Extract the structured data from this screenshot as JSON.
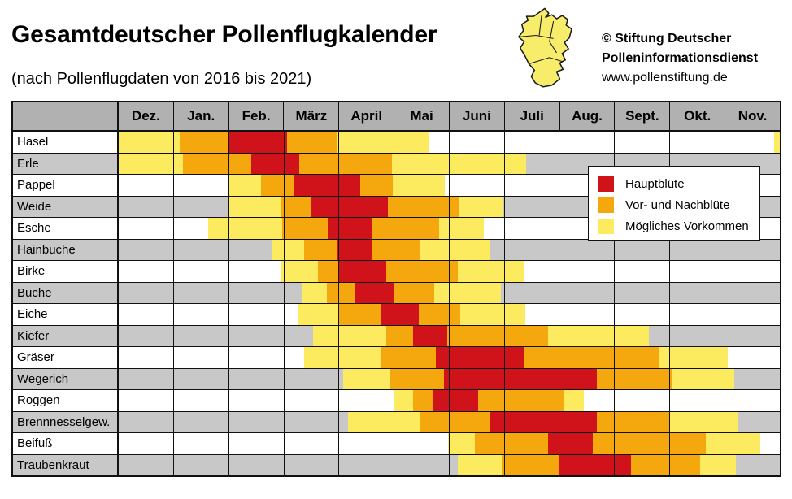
{
  "page": {
    "title": "Gesamtdeutscher Pollenflugkalender",
    "subtitle": "(nach Pollenflugdaten von 2016 bis 2021)"
  },
  "branding": {
    "map_icon": "germany-map",
    "line1": "© Stiftung Deutscher",
    "line2": "Polleninformationsdienst",
    "line3": "www.pollenstiftung.de"
  },
  "legend": {
    "items": [
      {
        "key": "main",
        "label": "Hauptblüte",
        "color": "#d0121a"
      },
      {
        "key": "pre",
        "label": "Vor- und Nachblüte",
        "color": "#f5a70e"
      },
      {
        "key": "possible",
        "label": "Mögliches Vorkommen",
        "color": "#fcea5f"
      }
    ]
  },
  "colors": {
    "header_gray": "#b1b1b1",
    "alt_row_gray": "#c8c8c8",
    "grid_black": "#111111",
    "map_yellow": "#f8ed6b"
  },
  "chart_data": {
    "type": "heatmap",
    "title": "Gesamtdeutscher Pollenflugkalender",
    "subtitle": "(nach Pollenflugdaten von 2016 bis 2021)",
    "x_axis": "months, starting with December; segment positions in fractional months 0–12 from Dec 1",
    "months": [
      "Dez.",
      "Jan.",
      "Feb.",
      "März",
      "April",
      "Mai",
      "Juni",
      "Juli",
      "Aug.",
      "Sept.",
      "Okt.",
      "Nov."
    ],
    "legend_position": "overlaid upper right of grid",
    "categories": {
      "main": "Hauptblüte",
      "pre": "Vor- und Nachblüte",
      "possible": "Mögliches Vorkommen"
    },
    "rows": [
      {
        "label": "Hasel",
        "segments": [
          {
            "kind": "possible",
            "from": 0,
            "to": 1.1
          },
          {
            "kind": "pre",
            "from": 1.1,
            "to": 2.0
          },
          {
            "kind": "main",
            "from": 2.0,
            "to": 3.06
          },
          {
            "kind": "pre",
            "from": 3.06,
            "to": 3.97
          },
          {
            "kind": "possible",
            "from": 3.97,
            "to": 5.64
          },
          {
            "kind": "possible",
            "from": 11.9,
            "to": 12.0
          }
        ]
      },
      {
        "label": "Erle",
        "segments": [
          {
            "kind": "possible",
            "from": 0,
            "to": 1.17
          },
          {
            "kind": "pre",
            "from": 1.17,
            "to": 2.4
          },
          {
            "kind": "main",
            "from": 2.4,
            "to": 3.27
          },
          {
            "kind": "pre",
            "from": 3.27,
            "to": 4.96
          },
          {
            "kind": "possible",
            "from": 4.96,
            "to": 7.4
          }
        ]
      },
      {
        "label": "Pappel",
        "segments": [
          {
            "kind": "possible",
            "from": 2.0,
            "to": 2.58
          },
          {
            "kind": "pre",
            "from": 2.58,
            "to": 3.17
          },
          {
            "kind": "main",
            "from": 3.17,
            "to": 4.39
          },
          {
            "kind": "pre",
            "from": 4.39,
            "to": 4.97
          },
          {
            "kind": "possible",
            "from": 4.97,
            "to": 5.92
          }
        ]
      },
      {
        "label": "Weide",
        "segments": [
          {
            "kind": "possible",
            "from": 2.0,
            "to": 2.95
          },
          {
            "kind": "pre",
            "from": 2.95,
            "to": 3.49
          },
          {
            "kind": "main",
            "from": 3.49,
            "to": 4.88
          },
          {
            "kind": "pre",
            "from": 4.88,
            "to": 6.18
          },
          {
            "kind": "possible",
            "from": 6.18,
            "to": 6.98
          }
        ]
      },
      {
        "label": "Esche",
        "segments": [
          {
            "kind": "possible",
            "from": 1.62,
            "to": 2.97
          },
          {
            "kind": "pre",
            "from": 2.97,
            "to": 3.8
          },
          {
            "kind": "main",
            "from": 3.8,
            "to": 4.59
          },
          {
            "kind": "pre",
            "from": 4.59,
            "to": 5.81
          },
          {
            "kind": "possible",
            "from": 5.81,
            "to": 6.62
          }
        ]
      },
      {
        "label": "Hainbuche",
        "segments": [
          {
            "kind": "possible",
            "from": 2.79,
            "to": 3.36
          },
          {
            "kind": "pre",
            "from": 3.36,
            "to": 3.95
          },
          {
            "kind": "main",
            "from": 3.95,
            "to": 4.61
          },
          {
            "kind": "pre",
            "from": 4.61,
            "to": 5.46
          },
          {
            "kind": "possible",
            "from": 5.46,
            "to": 6.74
          }
        ]
      },
      {
        "label": "Birke",
        "segments": [
          {
            "kind": "possible",
            "from": 2.95,
            "to": 3.61
          },
          {
            "kind": "pre",
            "from": 3.61,
            "to": 4.0
          },
          {
            "kind": "main",
            "from": 4.0,
            "to": 4.86
          },
          {
            "kind": "pre",
            "from": 4.86,
            "to": 6.15
          },
          {
            "kind": "possible",
            "from": 6.15,
            "to": 7.35
          }
        ]
      },
      {
        "label": "Buche",
        "segments": [
          {
            "kind": "possible",
            "from": 3.33,
            "to": 3.78
          },
          {
            "kind": "pre",
            "from": 3.78,
            "to": 4.29
          },
          {
            "kind": "main",
            "from": 4.29,
            "to": 5.0
          },
          {
            "kind": "pre",
            "from": 5.0,
            "to": 5.72
          },
          {
            "kind": "possible",
            "from": 5.72,
            "to": 6.94
          }
        ]
      },
      {
        "label": "Eiche",
        "segments": [
          {
            "kind": "possible",
            "from": 3.26,
            "to": 4.0
          },
          {
            "kind": "pre",
            "from": 4.0,
            "to": 4.76
          },
          {
            "kind": "main",
            "from": 4.76,
            "to": 5.44
          },
          {
            "kind": "pre",
            "from": 5.44,
            "to": 6.2
          },
          {
            "kind": "possible",
            "from": 6.2,
            "to": 7.38
          }
        ]
      },
      {
        "label": "Kiefer",
        "segments": [
          {
            "kind": "possible",
            "from": 3.53,
            "to": 4.86
          },
          {
            "kind": "pre",
            "from": 4.86,
            "to": 5.35
          },
          {
            "kind": "main",
            "from": 5.35,
            "to": 5.97
          },
          {
            "kind": "pre",
            "from": 5.97,
            "to": 7.8
          },
          {
            "kind": "possible",
            "from": 7.8,
            "to": 9.63
          }
        ]
      },
      {
        "label": "Gräser",
        "segments": [
          {
            "kind": "possible",
            "from": 3.36,
            "to": 4.76
          },
          {
            "kind": "pre",
            "from": 4.76,
            "to": 5.76
          },
          {
            "kind": "main",
            "from": 5.76,
            "to": 7.35
          },
          {
            "kind": "pre",
            "from": 7.35,
            "to": 9.8
          },
          {
            "kind": "possible",
            "from": 9.8,
            "to": 11.05
          }
        ]
      },
      {
        "label": "Wegerich",
        "segments": [
          {
            "kind": "possible",
            "from": 4.07,
            "to": 4.93
          },
          {
            "kind": "pre",
            "from": 4.93,
            "to": 5.9
          },
          {
            "kind": "main",
            "from": 5.9,
            "to": 8.68
          },
          {
            "kind": "pre",
            "from": 8.68,
            "to": 10.03
          },
          {
            "kind": "possible",
            "from": 10.03,
            "to": 11.17
          }
        ]
      },
      {
        "label": "Roggen",
        "segments": [
          {
            "kind": "possible",
            "from": 5.0,
            "to": 5.35
          },
          {
            "kind": "pre",
            "from": 5.35,
            "to": 5.71
          },
          {
            "kind": "main",
            "from": 5.71,
            "to": 6.52
          },
          {
            "kind": "pre",
            "from": 6.52,
            "to": 8.07
          },
          {
            "kind": "possible",
            "from": 8.07,
            "to": 8.45
          }
        ]
      },
      {
        "label": "Brennnesselgew.",
        "segments": [
          {
            "kind": "possible",
            "from": 4.16,
            "to": 5.46
          },
          {
            "kind": "pre",
            "from": 5.46,
            "to": 6.74
          },
          {
            "kind": "main",
            "from": 6.74,
            "to": 8.68
          },
          {
            "kind": "pre",
            "from": 8.68,
            "to": 9.99
          },
          {
            "kind": "possible",
            "from": 9.99,
            "to": 11.23
          }
        ]
      },
      {
        "label": "Beifuß",
        "segments": [
          {
            "kind": "possible",
            "from": 5.98,
            "to": 6.47
          },
          {
            "kind": "pre",
            "from": 6.47,
            "to": 7.8
          },
          {
            "kind": "main",
            "from": 7.8,
            "to": 8.6
          },
          {
            "kind": "pre",
            "from": 8.6,
            "to": 10.66
          },
          {
            "kind": "possible",
            "from": 10.66,
            "to": 11.64
          }
        ]
      },
      {
        "label": "Traubenkraut",
        "segments": [
          {
            "kind": "possible",
            "from": 6.15,
            "to": 6.95
          },
          {
            "kind": "pre",
            "from": 6.95,
            "to": 7.99
          },
          {
            "kind": "main",
            "from": 7.99,
            "to": 9.3
          },
          {
            "kind": "pre",
            "from": 9.3,
            "to": 10.56
          },
          {
            "kind": "possible",
            "from": 10.56,
            "to": 11.2
          }
        ]
      }
    ]
  }
}
